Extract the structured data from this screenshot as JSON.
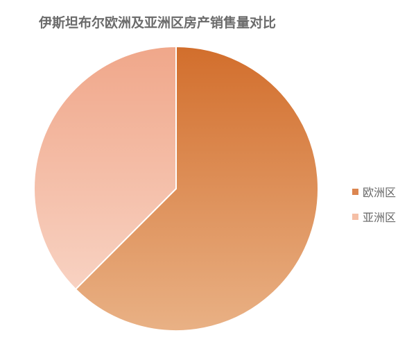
{
  "chart_data": {
    "type": "pie",
    "title": "伊斯坦布尔欧洲及亚洲区房产销售量对比",
    "categories": [
      "欧洲区",
      "亚洲区"
    ],
    "values": [
      62.5,
      37.5
    ],
    "unit": "percent (estimated)",
    "start_angle": "12 o'clock, clockwise",
    "colors": [
      "#dc8650",
      "#f5bfa6"
    ],
    "gradients": [
      [
        "#d26e2c",
        "#e9b185"
      ],
      [
        "#f0a78a",
        "#f8d2c2"
      ]
    ],
    "legend_position": "right"
  }
}
